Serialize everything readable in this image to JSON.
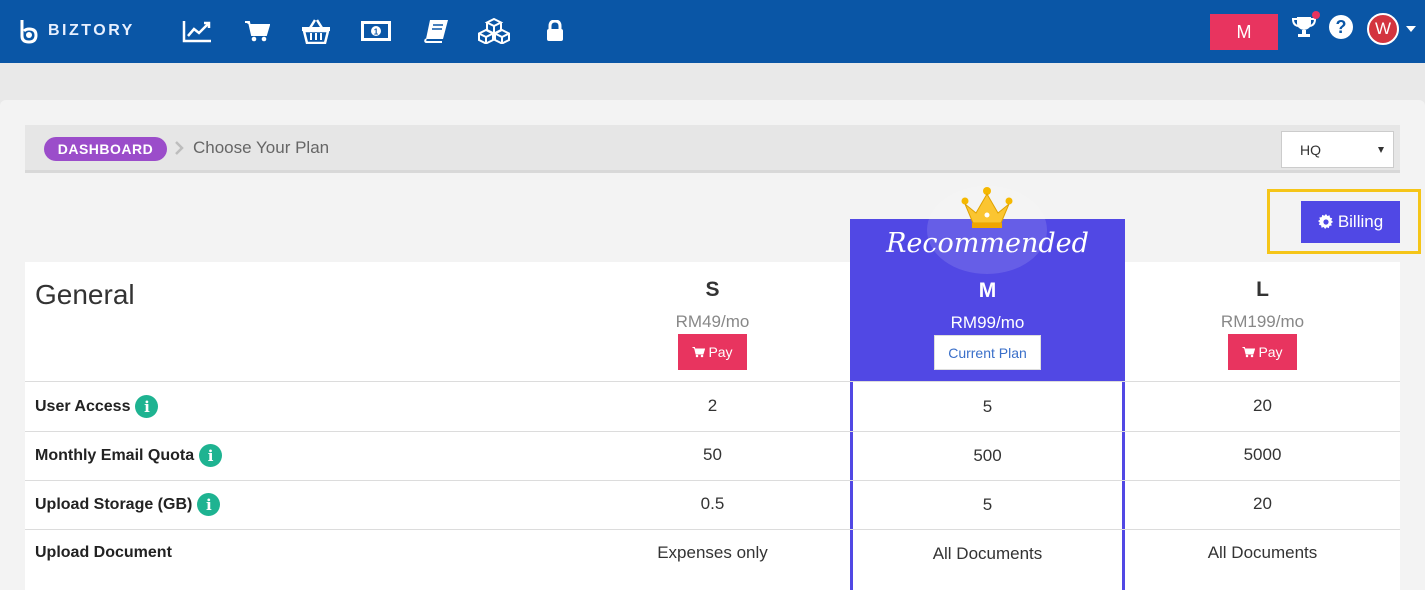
{
  "app": {
    "name": "BIZTORY"
  },
  "nav": {
    "icons": [
      "chart-line-icon",
      "shopping-cart-icon",
      "shopping-basket-icon",
      "money-bill-icon",
      "book-icon",
      "cubes-icon",
      "lock-icon"
    ],
    "plan_badge": "M",
    "avatar_initial": "W",
    "help_label": "?"
  },
  "breadcrumb": {
    "root": "DASHBOARD",
    "current": "Choose Your Plan"
  },
  "branch_select": {
    "value": "HQ"
  },
  "billing_button": {
    "label": "Billing"
  },
  "pricing": {
    "section_title": "General",
    "recommended_label": "Recommended",
    "plans": [
      {
        "name": "S",
        "price": "RM49/mo",
        "action": "Pay"
      },
      {
        "name": "M",
        "price": "RM99/mo",
        "action": "Current Plan"
      },
      {
        "name": "L",
        "price": "RM199/mo",
        "action": "Pay"
      }
    ],
    "features": [
      {
        "label": "User Access",
        "values": [
          "2",
          "5",
          "20"
        ]
      },
      {
        "label": "Monthly Email Quota",
        "values": [
          "50",
          "500",
          "5000"
        ]
      },
      {
        "label": "Upload Storage (GB)",
        "values": [
          "0.5",
          "5",
          "20"
        ]
      },
      {
        "label": "Upload Document",
        "values": [
          "Expenses only",
          "All Documents",
          "All Documents"
        ]
      }
    ]
  },
  "colors": {
    "nav_bg": "#0a56a6",
    "accent_pink": "#e8345f",
    "recommended_purple": "#5148e4",
    "breadcrumb_pill": "#9b4dca",
    "info_green": "#1eb391",
    "highlight_yellow": "#f5c518"
  }
}
